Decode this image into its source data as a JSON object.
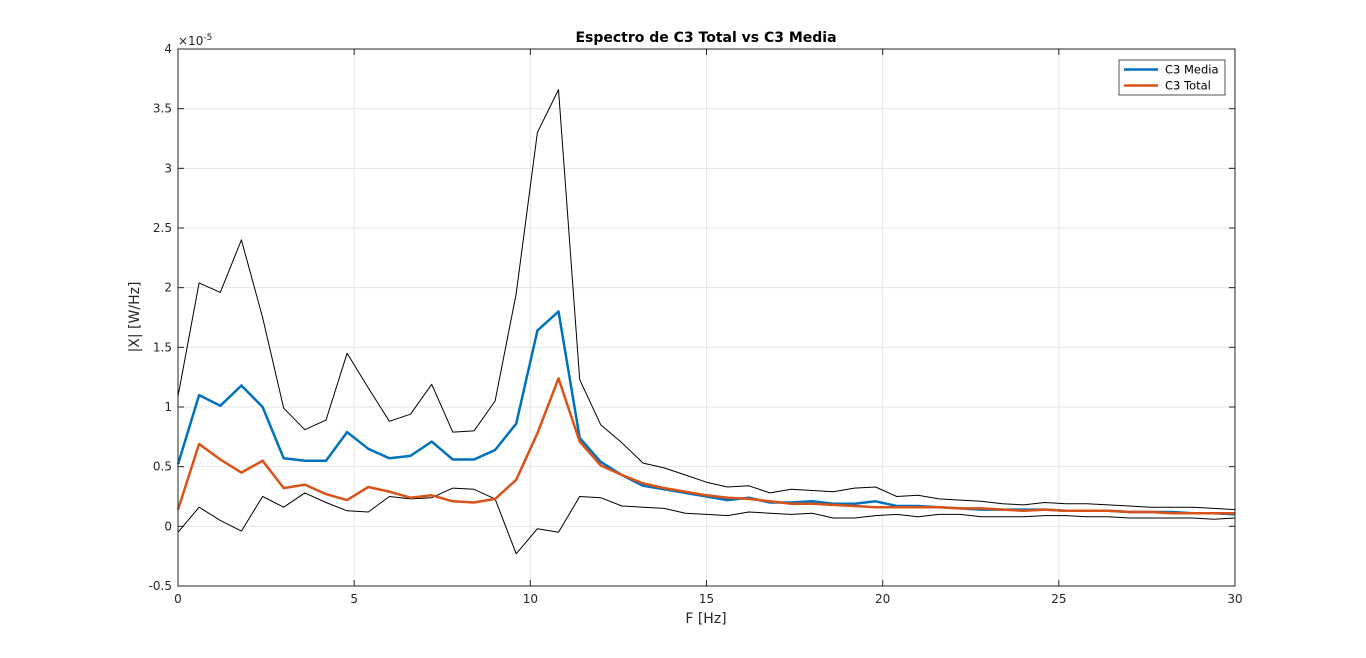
{
  "chart_data": {
    "type": "line",
    "title": "Espectro de C3 Total vs C3 Media",
    "xlabel": "F [Hz]",
    "ylabel": "|X| [W/Hz]",
    "y_exponent_label": "×10",
    "y_exponent_power": "-5",
    "xlim": [
      0,
      30
    ],
    "ylim": [
      -0.5,
      4
    ],
    "xticks": [
      0,
      5,
      10,
      15,
      20,
      25,
      30
    ],
    "xtick_labels": [
      "0",
      "5",
      "10",
      "15",
      "20",
      "25",
      "30"
    ],
    "yticks": [
      -0.5,
      0,
      0.5,
      1,
      1.5,
      2,
      2.5,
      3,
      3.5,
      4
    ],
    "ytick_labels": [
      "-0.5",
      "0",
      "0.5",
      "1",
      "1.5",
      "2",
      "2.5",
      "3",
      "3.5",
      "4"
    ],
    "grid": true,
    "legend_position": "top-right",
    "x": [
      0,
      0.6,
      1.2,
      1.8,
      2.4,
      3.0,
      3.6,
      4.2,
      4.8,
      5.4,
      6.0,
      6.6,
      7.2,
      7.8,
      8.4,
      9.0,
      9.6,
      10.2,
      10.8,
      11.4,
      12.0,
      12.6,
      13.2,
      13.8,
      14.4,
      15.0,
      15.6,
      16.2,
      16.8,
      17.4,
      18.0,
      18.6,
      19.2,
      19.8,
      20.4,
      21.0,
      21.6,
      22.2,
      22.8,
      23.4,
      24.0,
      24.6,
      25.2,
      25.8,
      26.4,
      27.0,
      27.6,
      28.2,
      28.8,
      29.4,
      30.0
    ],
    "series": [
      {
        "name": "C3 Media",
        "color": "#0072BD",
        "in_legend": true,
        "values": [
          0.52,
          1.1,
          1.01,
          1.18,
          1.0,
          0.57,
          0.55,
          0.55,
          0.79,
          0.65,
          0.57,
          0.59,
          0.71,
          0.56,
          0.56,
          0.64,
          0.86,
          1.64,
          1.8,
          0.74,
          0.54,
          0.43,
          0.34,
          0.31,
          0.28,
          0.25,
          0.22,
          0.24,
          0.2,
          0.2,
          0.21,
          0.19,
          0.19,
          0.21,
          0.17,
          0.17,
          0.16,
          0.15,
          0.14,
          0.14,
          0.14,
          0.14,
          0.13,
          0.13,
          0.13,
          0.12,
          0.12,
          0.12,
          0.11,
          0.11,
          0.1
        ]
      },
      {
        "name": "C3 Total",
        "color": "#D95319",
        "in_legend": true,
        "values": [
          0.14,
          0.69,
          0.56,
          0.45,
          0.55,
          0.32,
          0.35,
          0.27,
          0.22,
          0.33,
          0.29,
          0.24,
          0.26,
          0.21,
          0.2,
          0.23,
          0.39,
          0.78,
          1.24,
          0.71,
          0.51,
          0.43,
          0.36,
          0.32,
          0.29,
          0.26,
          0.24,
          0.23,
          0.21,
          0.19,
          0.19,
          0.18,
          0.17,
          0.16,
          0.16,
          0.16,
          0.16,
          0.15,
          0.15,
          0.14,
          0.13,
          0.14,
          0.13,
          0.13,
          0.13,
          0.12,
          0.12,
          0.11,
          0.11,
          0.11,
          0.11
        ]
      },
      {
        "name": "",
        "color": "#000000",
        "in_legend": false,
        "values": [
          1.09,
          2.04,
          1.96,
          2.4,
          1.75,
          0.99,
          0.81,
          0.89,
          1.45,
          1.16,
          0.88,
          0.94,
          1.19,
          0.79,
          0.8,
          1.05,
          1.95,
          3.3,
          3.66,
          1.23,
          0.85,
          0.7,
          0.53,
          0.49,
          0.43,
          0.37,
          0.33,
          0.34,
          0.28,
          0.31,
          0.3,
          0.29,
          0.32,
          0.33,
          0.25,
          0.26,
          0.23,
          0.22,
          0.21,
          0.19,
          0.18,
          0.2,
          0.19,
          0.19,
          0.18,
          0.17,
          0.16,
          0.16,
          0.16,
          0.15,
          0.14
        ]
      },
      {
        "name": "",
        "color": "#000000",
        "in_legend": false,
        "values": [
          -0.05,
          0.16,
          0.05,
          -0.04,
          0.25,
          0.16,
          0.28,
          0.2,
          0.13,
          0.12,
          0.25,
          0.23,
          0.24,
          0.32,
          0.31,
          0.23,
          -0.23,
          -0.02,
          -0.05,
          0.25,
          0.24,
          0.17,
          0.16,
          0.15,
          0.11,
          0.1,
          0.09,
          0.12,
          0.11,
          0.1,
          0.11,
          0.07,
          0.07,
          0.09,
          0.1,
          0.08,
          0.1,
          0.1,
          0.08,
          0.08,
          0.08,
          0.09,
          0.09,
          0.08,
          0.08,
          0.07,
          0.07,
          0.07,
          0.07,
          0.06,
          0.07
        ]
      }
    ]
  }
}
